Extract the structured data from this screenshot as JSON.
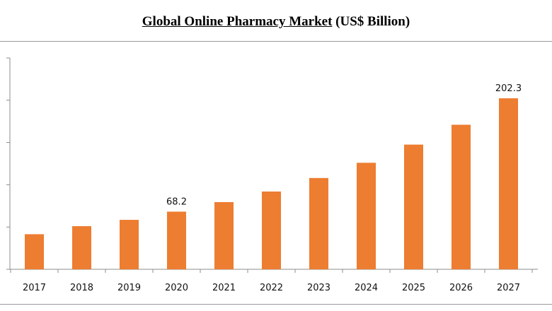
{
  "title_main": "Global Online Pharmacy Market",
  "title_unit": "(US$ Billion)",
  "chart_data": {
    "type": "bar",
    "title": "Global Online Pharmacy Market (US$ Billion)",
    "xlabel": "",
    "ylabel": "",
    "categories": [
      "2017",
      "2018",
      "2019",
      "2020",
      "2021",
      "2022",
      "2023",
      "2024",
      "2025",
      "2026",
      "2027"
    ],
    "values": [
      41.5,
      51.0,
      58.5,
      68.2,
      79.5,
      92.0,
      108.0,
      126.0,
      147.5,
      171.0,
      202.3
    ],
    "data_labels": [
      {
        "category": "2020",
        "text": "68.2"
      },
      {
        "category": "2027",
        "text": "202.3"
      }
    ],
    "ylim": [
      0,
      250
    ],
    "ytick_count": 5,
    "bar_color": "#ED7D31",
    "axis_color": "#8c8c8c",
    "grid": false,
    "legend": "none"
  }
}
